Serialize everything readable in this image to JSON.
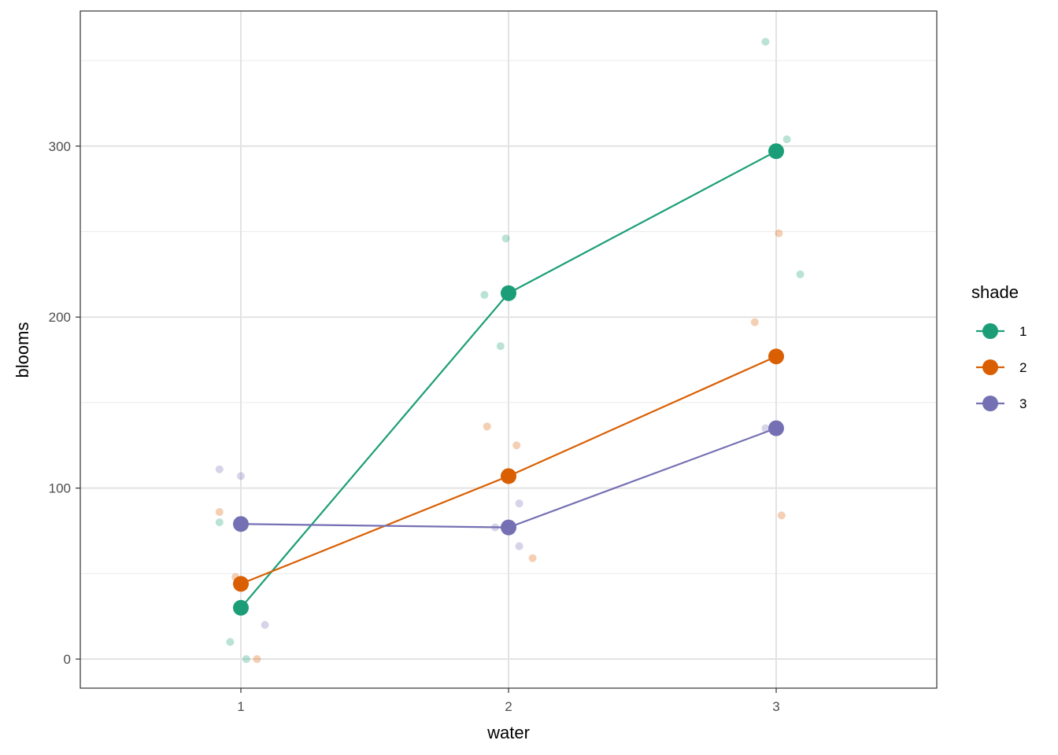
{
  "chart_data": {
    "type": "line",
    "xlabel": "water",
    "ylabel": "blooms",
    "x_ticks": [
      1,
      2,
      3
    ],
    "y_ticks": [
      0,
      100,
      200,
      300
    ],
    "xlim": [
      0.4,
      3.6
    ],
    "ylim": [
      -17,
      379
    ],
    "grid": true,
    "legend": {
      "title": "shade",
      "position": "right",
      "entries": [
        "1",
        "2",
        "3"
      ]
    },
    "series": [
      {
        "name": "1",
        "color": "#1b9e77",
        "means": [
          {
            "x": 1,
            "y": 30
          },
          {
            "x": 2,
            "y": 214
          },
          {
            "x": 3,
            "y": 297
          }
        ],
        "points": [
          {
            "x": 0.92,
            "y": 80
          },
          {
            "x": 0.96,
            "y": 10
          },
          {
            "x": 1.02,
            "y": 0
          },
          {
            "x": 1.91,
            "y": 213
          },
          {
            "x": 1.97,
            "y": 183
          },
          {
            "x": 1.99,
            "y": 246
          },
          {
            "x": 2.96,
            "y": 361
          },
          {
            "x": 3.04,
            "y": 304
          },
          {
            "x": 3.09,
            "y": 225
          }
        ]
      },
      {
        "name": "2",
        "color": "#d95f02",
        "means": [
          {
            "x": 1,
            "y": 44
          },
          {
            "x": 2,
            "y": 107
          },
          {
            "x": 3,
            "y": 177
          }
        ],
        "points": [
          {
            "x": 0.92,
            "y": 86
          },
          {
            "x": 0.98,
            "y": 48
          },
          {
            "x": 1.06,
            "y": 0
          },
          {
            "x": 1.92,
            "y": 136
          },
          {
            "x": 2.03,
            "y": 125
          },
          {
            "x": 2.09,
            "y": 59
          },
          {
            "x": 2.92,
            "y": 197
          },
          {
            "x": 3.01,
            "y": 249
          },
          {
            "x": 3.02,
            "y": 84
          }
        ]
      },
      {
        "name": "3",
        "color": "#7570b3",
        "means": [
          {
            "x": 1,
            "y": 79
          },
          {
            "x": 2,
            "y": 77
          },
          {
            "x": 3,
            "y": 135
          }
        ],
        "points": [
          {
            "x": 0.92,
            "y": 111
          },
          {
            "x": 1.0,
            "y": 107
          },
          {
            "x": 1.09,
            "y": 20
          },
          {
            "x": 1.95,
            "y": 77
          },
          {
            "x": 2.04,
            "y": 91
          },
          {
            "x": 2.04,
            "y": 66
          },
          {
            "x": 2.96,
            "y": 135
          }
        ]
      }
    ]
  }
}
